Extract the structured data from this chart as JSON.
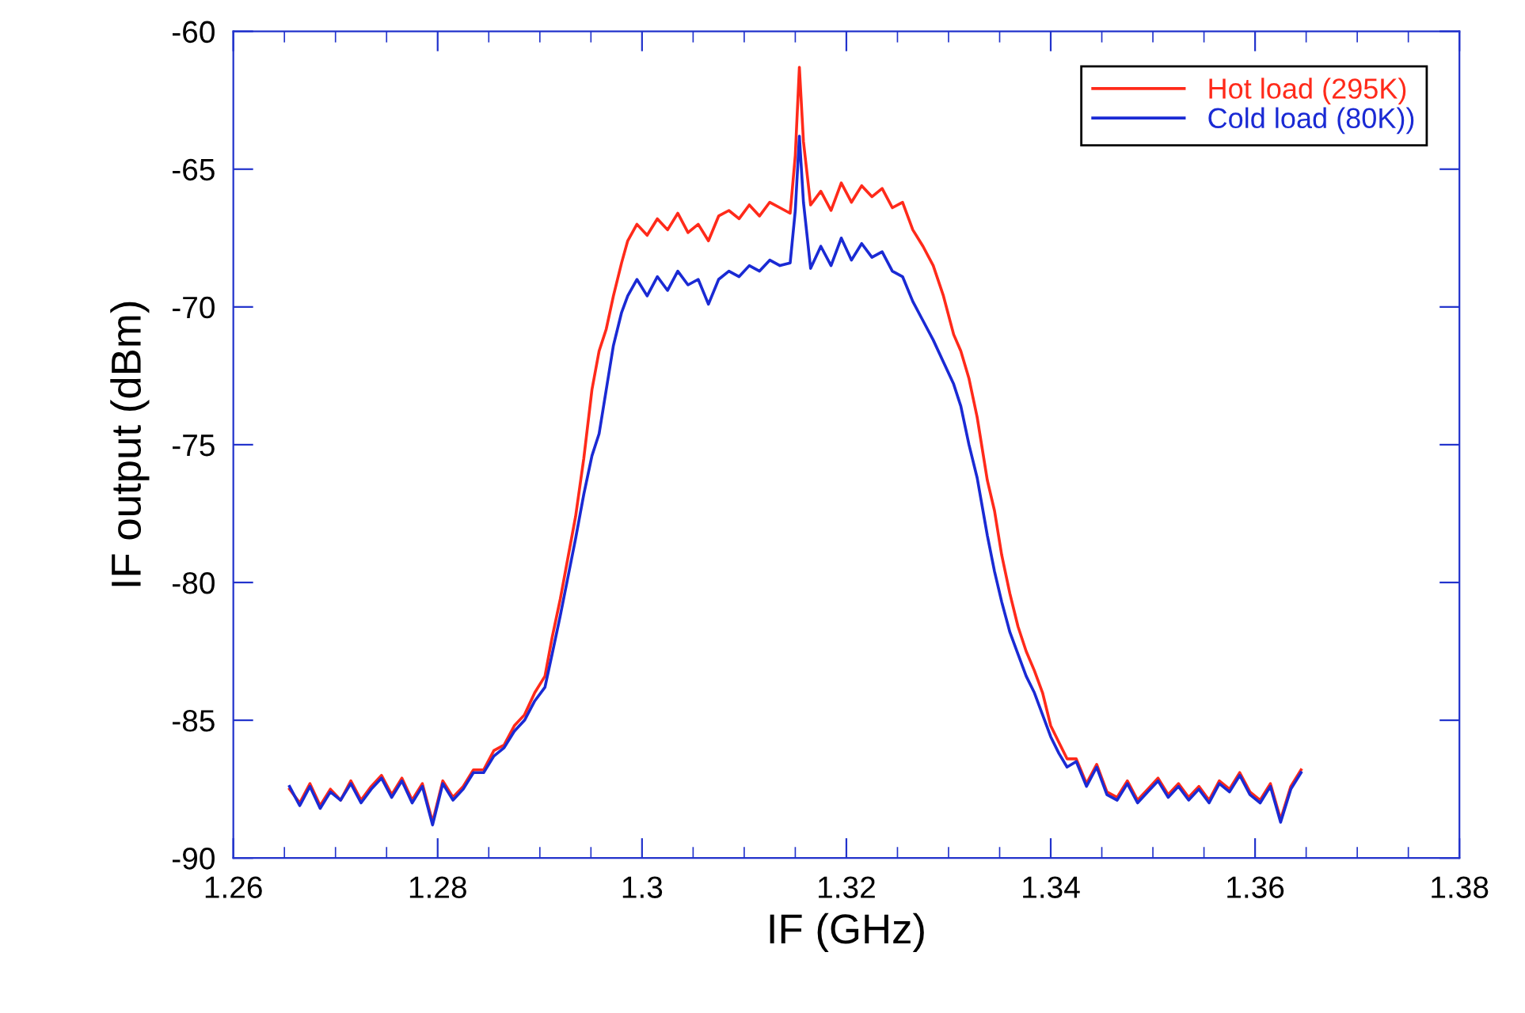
{
  "chart_data": {
    "type": "line",
    "xlabel": "IF (GHz)",
    "ylabel": "IF output (dBm)",
    "x": [
      1.2655,
      1.2665,
      1.2675,
      1.2685,
      1.2695,
      1.2705,
      1.2715,
      1.2725,
      1.2735,
      1.2745,
      1.2755,
      1.2765,
      1.2775,
      1.2785,
      1.2795,
      1.2805,
      1.2815,
      1.2825,
      1.2835,
      1.2845,
      1.2855,
      1.2865,
      1.2875,
      1.2885,
      1.2895,
      1.2905,
      1.2912,
      1.292,
      1.2927,
      1.2935,
      1.2943,
      1.2951,
      1.2958,
      1.2965,
      1.2972,
      1.298,
      1.2986,
      1.2995,
      1.3005,
      1.3015,
      1.3025,
      1.3035,
      1.3045,
      1.3055,
      1.3065,
      1.3075,
      1.3085,
      1.3095,
      1.3105,
      1.3115,
      1.3125,
      1.3135,
      1.3145,
      1.315,
      1.3154,
      1.3158,
      1.3165,
      1.3175,
      1.3185,
      1.3195,
      1.3205,
      1.3215,
      1.3225,
      1.3235,
      1.3245,
      1.3255,
      1.3265,
      1.3275,
      1.3285,
      1.3295,
      1.3305,
      1.3312,
      1.332,
      1.3328,
      1.3338,
      1.3345,
      1.3352,
      1.336,
      1.3368,
      1.3376,
      1.3384,
      1.3392,
      1.34,
      1.3408,
      1.3416,
      1.3425,
      1.3435,
      1.3445,
      1.3455,
      1.3465,
      1.3475,
      1.3485,
      1.3495,
      1.3505,
      1.3515,
      1.3525,
      1.3535,
      1.3545,
      1.3555,
      1.3565,
      1.3575,
      1.3585,
      1.3595,
      1.3605,
      1.3615,
      1.3625,
      1.3635,
      1.3645
    ],
    "series": [
      {
        "name": "Hot load (295K)",
        "color": "#ff2a1a",
        "values": [
          -87.5,
          -88.0,
          -87.3,
          -88.1,
          -87.5,
          -87.9,
          -87.2,
          -87.9,
          -87.4,
          -87.0,
          -87.7,
          -87.1,
          -87.9,
          -87.3,
          -88.7,
          -87.2,
          -87.8,
          -87.4,
          -86.8,
          -86.8,
          -86.1,
          -85.9,
          -85.2,
          -84.8,
          -84.0,
          -83.4,
          -82.0,
          -80.6,
          -79.2,
          -77.6,
          -75.5,
          -73.0,
          -71.6,
          -70.8,
          -69.6,
          -68.4,
          -67.6,
          -67.0,
          -67.4,
          -66.8,
          -67.2,
          -66.6,
          -67.3,
          -67.0,
          -67.6,
          -66.7,
          -66.5,
          -66.8,
          -66.3,
          -66.7,
          -66.2,
          -66.4,
          -66.6,
          -64.5,
          -61.3,
          -64.0,
          -66.3,
          -65.8,
          -66.5,
          -65.5,
          -66.2,
          -65.6,
          -66.0,
          -65.7,
          -66.4,
          -66.2,
          -67.2,
          -67.8,
          -68.5,
          -69.6,
          -71.0,
          -71.6,
          -72.6,
          -74.0,
          -76.3,
          -77.4,
          -79.0,
          -80.4,
          -81.6,
          -82.5,
          -83.2,
          -84.0,
          -85.2,
          -85.8,
          -86.4,
          -86.4,
          -87.3,
          -86.6,
          -87.6,
          -87.8,
          -87.2,
          -87.9,
          -87.5,
          -87.1,
          -87.7,
          -87.3,
          -87.8,
          -87.4,
          -87.9,
          -87.2,
          -87.5,
          -86.9,
          -87.6,
          -87.9,
          -87.3,
          -88.6,
          -87.4,
          -86.8
        ]
      },
      {
        "name": "Cold load (80K))",
        "color": "#1a2ad4",
        "values": [
          -87.4,
          -88.1,
          -87.4,
          -88.2,
          -87.6,
          -87.9,
          -87.3,
          -88.0,
          -87.5,
          -87.1,
          -87.8,
          -87.2,
          -88.0,
          -87.4,
          -88.8,
          -87.3,
          -87.9,
          -87.5,
          -86.9,
          -86.9,
          -86.3,
          -86.0,
          -85.4,
          -85.0,
          -84.3,
          -83.8,
          -82.6,
          -81.2,
          -79.9,
          -78.4,
          -76.8,
          -75.4,
          -74.6,
          -73.0,
          -71.4,
          -70.2,
          -69.6,
          -69.0,
          -69.6,
          -68.9,
          -69.4,
          -68.7,
          -69.2,
          -69.0,
          -69.9,
          -69.0,
          -68.7,
          -68.9,
          -68.5,
          -68.7,
          -68.3,
          -68.5,
          -68.4,
          -66.5,
          -63.8,
          -66.2,
          -68.6,
          -67.8,
          -68.5,
          -67.5,
          -68.3,
          -67.7,
          -68.2,
          -68.0,
          -68.7,
          -68.9,
          -69.8,
          -70.5,
          -71.2,
          -72.0,
          -72.8,
          -73.6,
          -75.0,
          -76.2,
          -78.3,
          -79.6,
          -80.7,
          -81.8,
          -82.6,
          -83.4,
          -84.0,
          -84.8,
          -85.6,
          -86.2,
          -86.7,
          -86.5,
          -87.4,
          -86.7,
          -87.7,
          -87.9,
          -87.3,
          -88.0,
          -87.6,
          -87.2,
          -87.8,
          -87.4,
          -87.9,
          -87.5,
          -88.0,
          -87.3,
          -87.6,
          -87.0,
          -87.7,
          -88.0,
          -87.4,
          -88.7,
          -87.5,
          -86.9
        ]
      }
    ],
    "xlim": [
      1.26,
      1.38
    ],
    "xticks": [
      1.26,
      {
        "value": 1.265,
        "label": null
      },
      {
        "value": 1.27,
        "label": null
      },
      {
        "value": 1.275,
        "label": null
      },
      1.28,
      {
        "value": 1.285,
        "label": null
      },
      {
        "value": 1.29,
        "label": null
      },
      {
        "value": 1.295,
        "label": null
      },
      1.3,
      {
        "value": 1.305,
        "label": null
      },
      {
        "value": 1.31,
        "label": null
      },
      {
        "value": 1.315,
        "label": null
      },
      1.32,
      {
        "value": 1.325,
        "label": null
      },
      {
        "value": 1.33,
        "label": null
      },
      {
        "value": 1.335,
        "label": null
      },
      1.34,
      {
        "value": 1.345,
        "label": null
      },
      {
        "value": 1.35,
        "label": null
      },
      {
        "value": 1.355,
        "label": null
      },
      1.36,
      {
        "value": 1.365,
        "label": null
      },
      {
        "value": 1.37,
        "label": null
      },
      {
        "value": 1.375,
        "label": null
      },
      1.38
    ],
    "ylim": [
      -90,
      -60
    ],
    "yticks": [
      -90,
      -85,
      -80,
      -75,
      -70,
      -65,
      -60
    ],
    "grid": false,
    "legend": "top right",
    "marker": "none",
    "line_style": "solid"
  }
}
